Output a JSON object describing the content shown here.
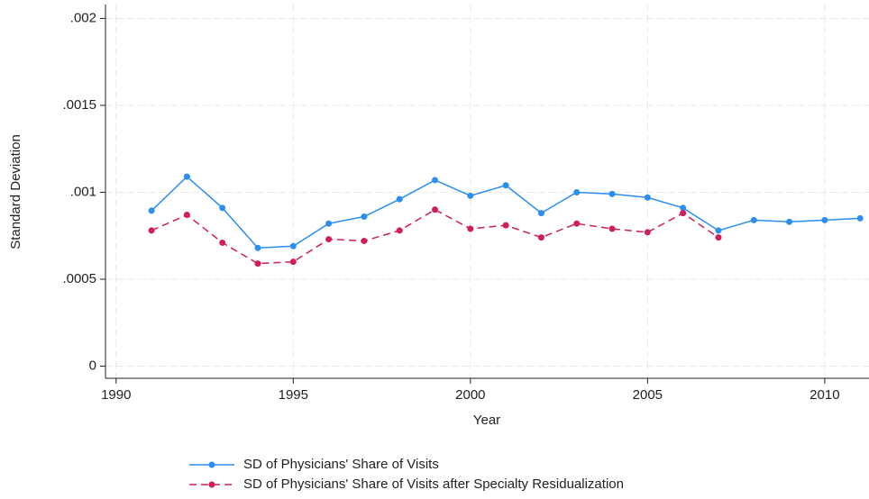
{
  "chart_data": {
    "type": "line",
    "x_label": "Year",
    "y_label": "Standard Deviation",
    "x": [
      1991,
      1992,
      1993,
      1994,
      1995,
      1996,
      1997,
      1998,
      1999,
      2000,
      2001,
      2002,
      2003,
      2004,
      2005,
      2006,
      2007,
      2008,
      2009,
      2010,
      2011
    ],
    "series": [
      {
        "name": "SD of Physicians' Share of Visits",
        "color": "#2b8ef0",
        "dash": "solid",
        "values": [
          0.000894,
          0.00109,
          0.00091,
          0.00068,
          0.00069,
          0.00082,
          0.00086,
          0.00096,
          0.00107,
          0.00098,
          0.00104,
          0.00088,
          0.001,
          0.00099,
          0.00097,
          0.00091,
          0.00078,
          0.00084,
          0.00083,
          0.00084,
          0.00085
        ]
      },
      {
        "name": "SD of Physicians' Share of Visits after Specialty Residualization",
        "color": "#d01e5a",
        "dash": "dashed",
        "values": [
          0.00078,
          0.00087,
          0.00071,
          0.00059,
          0.0006,
          0.00073,
          0.00072,
          0.00078,
          0.0009,
          0.00079,
          0.00081,
          0.00074,
          0.00082,
          0.00079,
          0.00077,
          0.00088,
          0.00074,
          null,
          null,
          null,
          null
        ]
      }
    ],
    "xlim": [
      1989.7,
      2011.25
    ],
    "xticks": [
      1990,
      1995,
      2000,
      2005,
      2010
    ],
    "ylim": [
      -7e-05,
      0.00208
    ],
    "yticks": [
      0,
      {
        "value": 0.0005,
        "label": ".0005"
      },
      {
        "value": 0.001,
        "label": ".001"
      },
      {
        "value": 0.0015,
        "label": ".0015"
      },
      {
        "value": 0.002,
        "label": ".002"
      }
    ],
    "grid": true,
    "legend": "bottom"
  }
}
